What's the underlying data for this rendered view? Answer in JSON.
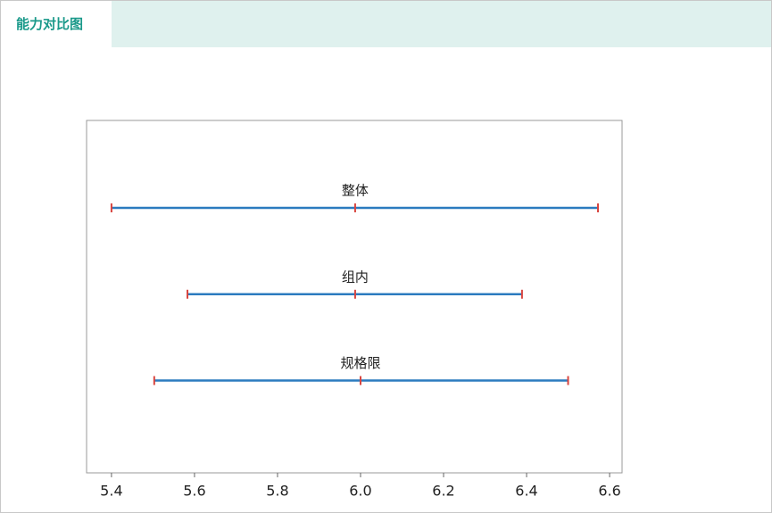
{
  "header": {
    "tab": "能力对比图"
  },
  "chart_data": {
    "type": "interval",
    "categories": [
      "整体",
      "组内",
      "规格限"
    ],
    "low": [
      5.4,
      5.583,
      5.503
    ],
    "center": [
      5.987,
      5.987,
      6.0
    ],
    "high": [
      6.572,
      6.389,
      6.5
    ],
    "line_color": "#2b7bbf",
    "cap_color": "#d9453f",
    "xlim": [
      5.34,
      6.63
    ],
    "xticks": [
      5.4,
      5.6,
      5.8,
      {
        "value": 6,
        "label": "6.0"
      },
      6.2,
      6.4,
      6.6
    ]
  }
}
